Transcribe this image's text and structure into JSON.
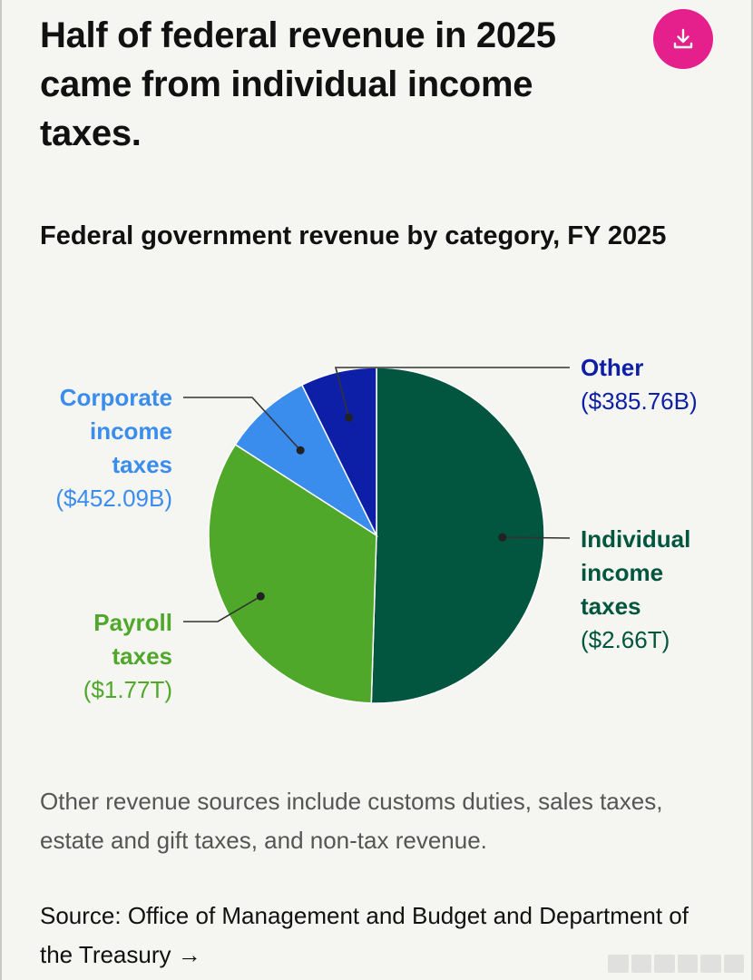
{
  "headline": "Half of federal revenue in 2025 came from individual income taxes.",
  "download_icon": "download-icon",
  "subtitle": "Federal government revenue by category, FY 2025",
  "note": "Other revenue sources include customs duties, sales taxes, estate and gift taxes, and non-tax revenue.",
  "source": {
    "text": "Source: Office of Management and Budget and Department of the Treasury",
    "arrow": "→"
  },
  "colors": {
    "accent": "#e51f8c",
    "individual": "#02553e",
    "payroll": "#4fa82a",
    "corporate": "#3b8ded",
    "other": "#0c1fa6"
  },
  "chart_data": {
    "type": "pie",
    "title": "Federal government revenue by category, FY 2025",
    "slices": [
      {
        "key": "individual",
        "name": "Individual income taxes",
        "lines": [
          "Individual",
          "income",
          "taxes"
        ],
        "value_label": "($2.66T)",
        "value": 2660,
        "color": "#02553e"
      },
      {
        "key": "payroll",
        "name": "Payroll taxes",
        "lines": [
          "Payroll",
          "taxes"
        ],
        "value_label": "($1.77T)",
        "value": 1770,
        "color": "#4fa82a"
      },
      {
        "key": "corporate",
        "name": "Corporate income taxes",
        "lines": [
          "Corporate",
          "income",
          "taxes"
        ],
        "value_label": "($452.09B)",
        "value": 452.09,
        "color": "#3b8ded"
      },
      {
        "key": "other",
        "name": "Other",
        "lines": [
          "Other"
        ],
        "value_label": "($385.76B)",
        "value": 385.76,
        "color": "#0c1fa6"
      }
    ],
    "units": "billions of dollars"
  }
}
